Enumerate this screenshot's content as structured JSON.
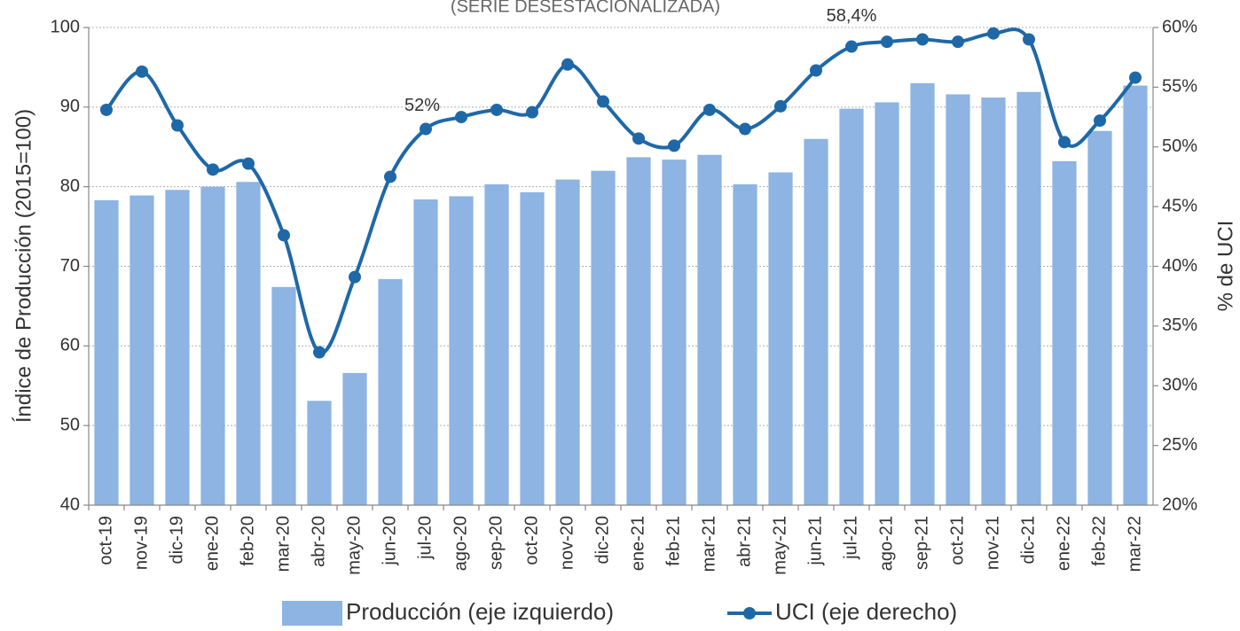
{
  "chart_data": {
    "type": "bar_line",
    "subtitle": "(SERIE DESESTACIONALIZADA)",
    "y_label": "Índice de Producción (2015=100)",
    "y2_label": "% de UCI",
    "categories": [
      "oct-19",
      "nov-19",
      "dic-19",
      "ene-20",
      "feb-20",
      "mar-20",
      "abr-20",
      "may-20",
      "jun-20",
      "jul-20",
      "ago-20",
      "sep-20",
      "oct-20",
      "nov-20",
      "dic-20",
      "ene-21",
      "feb-21",
      "mar-21",
      "abr-21",
      "may-21",
      "jun-21",
      "jul-21",
      "ago-21",
      "sep-21",
      "oct-21",
      "nov-21",
      "dic-21",
      "ene-22",
      "feb-22",
      "mar-22"
    ],
    "series": [
      {
        "name": "Producción (eje izquierdo)",
        "type": "bar",
        "color": "#8db4e2",
        "values": [
          78.3,
          78.9,
          79.6,
          80.0,
          80.6,
          67.4,
          53.1,
          56.6,
          68.4,
          78.4,
          78.8,
          80.3,
          79.3,
          80.9,
          82.0,
          83.7,
          83.4,
          84.0,
          80.3,
          81.8,
          86.0,
          89.8,
          90.6,
          93.0,
          91.6,
          91.2,
          91.9,
          83.2,
          87.0,
          92.7
        ]
      },
      {
        "name": "UCI (eje derecho)",
        "type": "line",
        "axis": "y2",
        "color": "#1f68a8",
        "values": [
          53.1,
          56.3,
          51.8,
          48.1,
          48.6,
          42.6,
          32.8,
          39.1,
          47.5,
          51.5,
          52.5,
          53.1,
          52.9,
          56.9,
          53.8,
          50.7,
          50.1,
          53.1,
          51.5,
          53.4,
          56.4,
          58.4,
          58.8,
          59.0,
          58.8,
          59.5,
          59.0,
          50.4,
          52.2,
          55.8
        ]
      }
    ],
    "annotations": [
      {
        "text": "52%",
        "index": 9
      },
      {
        "text": "58,4%",
        "index": 21
      }
    ],
    "ylim": [
      40,
      100
    ],
    "yticks": [
      40,
      50,
      60,
      70,
      80,
      90,
      100
    ],
    "y2lim": [
      20,
      60
    ],
    "y2ticks": [
      {
        "value": 20,
        "label": "20%"
      },
      {
        "value": 25,
        "label": "25%"
      },
      {
        "value": 30,
        "label": "30%"
      },
      {
        "value": 35,
        "label": "35%"
      },
      {
        "value": 40,
        "label": "40%"
      },
      {
        "value": 45,
        "label": "45%"
      },
      {
        "value": 50,
        "label": "50%"
      },
      {
        "value": 55,
        "label": "55%"
      },
      {
        "value": 60,
        "label": "60%"
      }
    ],
    "grid": true
  }
}
